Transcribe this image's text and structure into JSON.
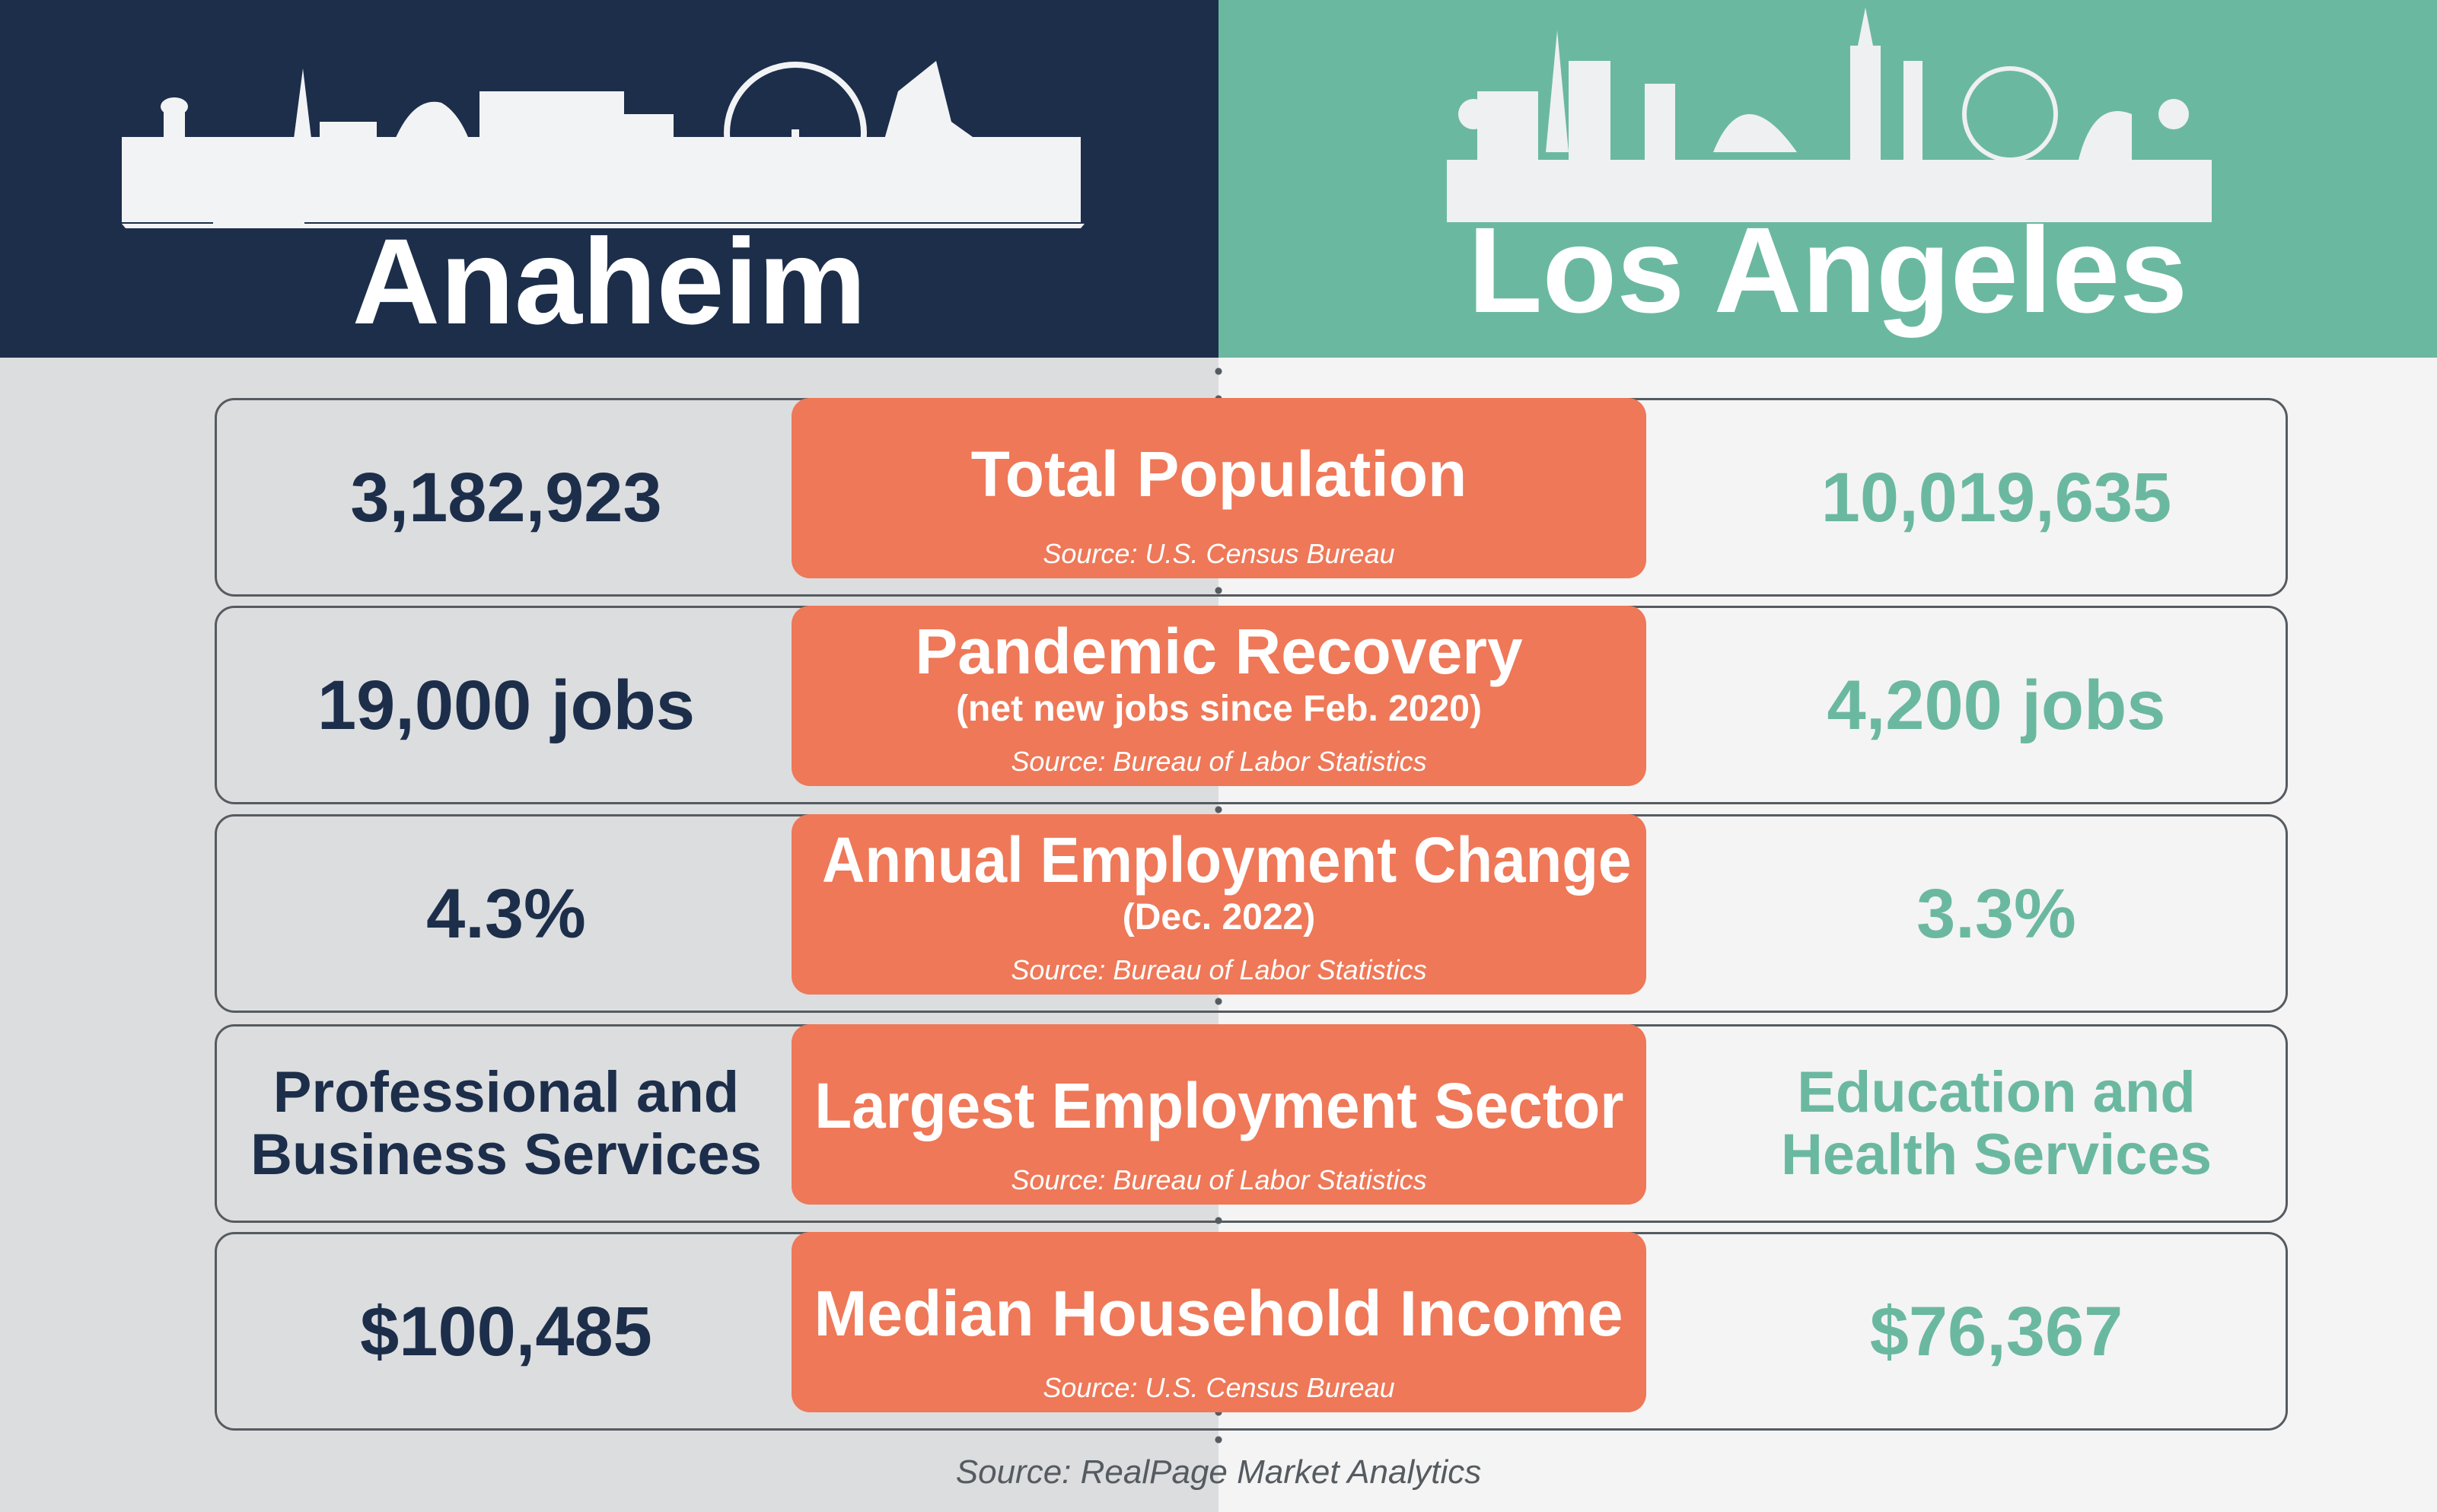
{
  "header": {
    "left_city": "Anaheim",
    "right_city": "Los Angeles",
    "left_color": "#1c2e4a",
    "right_color": "#6bb8a0"
  },
  "rows": [
    {
      "left": "3,182,923",
      "title": "Total Population",
      "subtitle": "",
      "source": "Source: U.S. Census Bureau",
      "right": "10,019,635"
    },
    {
      "left": "19,000 jobs",
      "title": "Pandemic Recovery",
      "subtitle": "(net new jobs since Feb. 2020)",
      "source": "Source: Bureau of Labor Statistics",
      "right": "4,200 jobs"
    },
    {
      "left": "4.3%",
      "title": "Annual Employment Change",
      "subtitle": "(Dec. 2022)",
      "source": "Source: Bureau of Labor Statistics",
      "right": "3.3%"
    },
    {
      "left": "Professional and Business Services",
      "title": "Largest Employment Sector",
      "subtitle": "",
      "source": "Source: Bureau of Labor Statistics",
      "right": "Education and Health Services"
    },
    {
      "left": "$100,485",
      "title": "Median Household Income",
      "subtitle": "",
      "source": "Source: U.S. Census Bureau",
      "right": "$76,367"
    }
  ],
  "footer": "Source: RealPage Market Analytics",
  "accent": "#ee7858"
}
